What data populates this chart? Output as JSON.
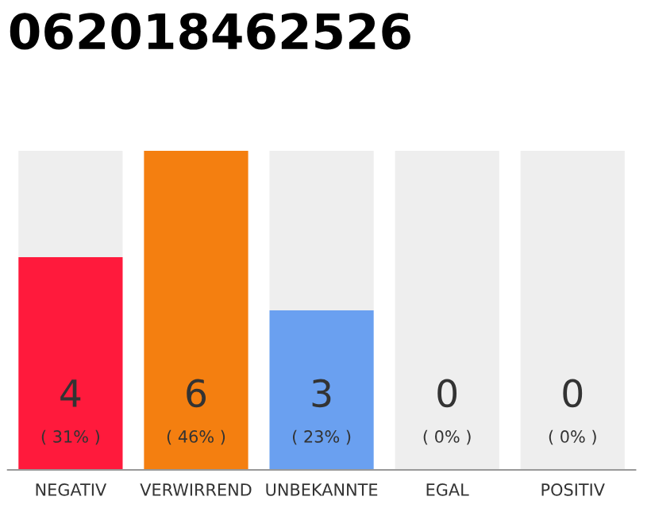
{
  "chart_data": {
    "type": "bar",
    "title": "062018462526",
    "categories": [
      "NEGATIV",
      "VERWIRREND",
      "UNBEKANNTE",
      "EGAL",
      "POSITIV"
    ],
    "stacked": true,
    "series": [
      {
        "values": [
          4,
          6,
          3,
          0,
          0
        ],
        "colors": [
          "#ff1a3c",
          "#f47f10",
          "#6aa0f0",
          "#cccccc",
          "#cccccc"
        ],
        "value_labels": [
          "4",
          "6",
          "3",
          null,
          null
        ]
      },
      {
        "values": [
          2,
          0,
          3,
          6,
          6
        ],
        "color": "#eeeeee"
      }
    ],
    "ylim": [
      0,
      6
    ],
    "tick_labels": "x",
    "annotations": [
      "( 31% )",
      "( 46% )",
      "( 23% )",
      "( 0% )",
      "( 0% )",
      "0",
      "0"
    ]
  }
}
